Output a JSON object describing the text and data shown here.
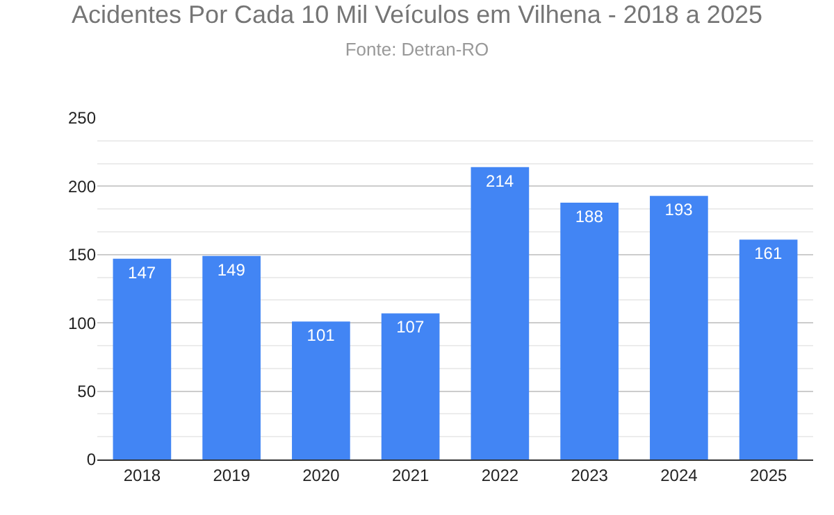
{
  "chart_data": {
    "type": "bar",
    "title": "Acidentes Por Cada 10 Mil Veículos em Vilhena - 2018 a 2025",
    "subtitle": "Fonte: Detran-RO",
    "categories": [
      "2018",
      "2019",
      "2020",
      "2021",
      "2022",
      "2023",
      "2024",
      "2025"
    ],
    "values": [
      147,
      149,
      101,
      107,
      214,
      188,
      193,
      161
    ],
    "color": "#4285f4",
    "ylim": [
      0,
      250
    ],
    "yticks": [
      0,
      50,
      100,
      150,
      200,
      250
    ],
    "grid": true,
    "data_labels": true
  }
}
